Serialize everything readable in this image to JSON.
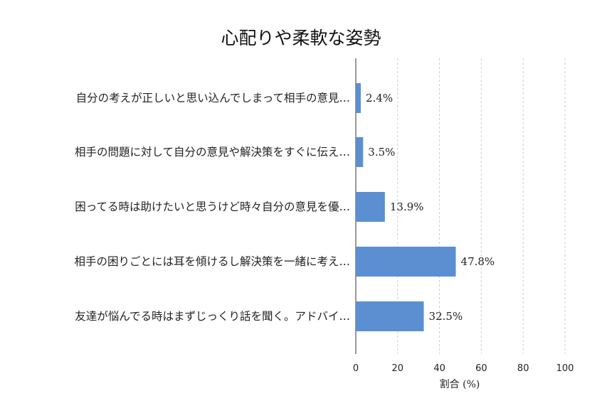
{
  "chart_data": {
    "type": "bar",
    "orientation": "horizontal",
    "title": "心配りや柔軟な姿勢",
    "xlabel": "割合 (%)",
    "ylabel": "",
    "xlim": [
      0,
      100
    ],
    "xticks": [
      0,
      20,
      40,
      60,
      80,
      100
    ],
    "grid": true,
    "color": "#5b8fd1",
    "categories": [
      "自分の考えが正しいと思い込んでしまって相手の意見…",
      "相手の問題に対して自分の意見や解決策をすぐに伝え…",
      "困ってる時は助けたいと思うけど時々自分の意見を優…",
      "相手の困りごとには耳を傾けるし解決策を一緒に考え…",
      "友達が悩んでる時はまずじっくり話を聞く。アドバイ…"
    ],
    "values": [
      2.4,
      3.5,
      13.9,
      47.8,
      32.5
    ],
    "value_labels": [
      "2.4%",
      "3.5%",
      "13.9%",
      "47.8%",
      "32.5%"
    ]
  }
}
